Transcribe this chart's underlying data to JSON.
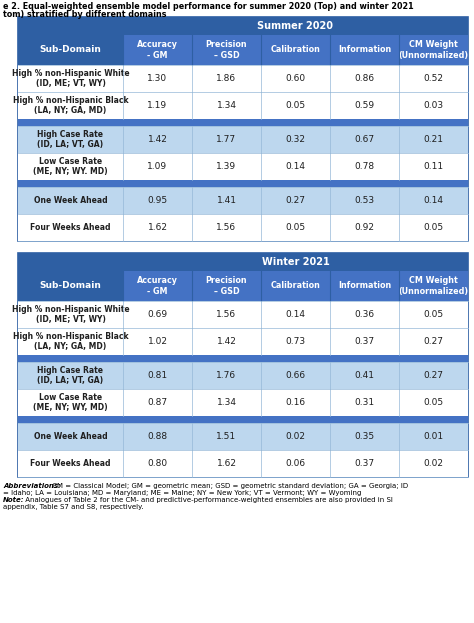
{
  "title_line1": "e 2. Equal-weighted ensemble model performance for summer 2020 (Top) and winter 2021",
  "title_line2": "tom) stratified by different domains",
  "summer_header": "Summer 2020",
  "winter_header": "Winter 2021",
  "col_headers": [
    "Accuracy\n- GM",
    "Precision\n– GSD",
    "Calibration",
    "Information",
    "CM Weight\n(Unnormalized)"
  ],
  "row_header": "Sub-Domain",
  "summer_rows": [
    {
      "label": "High % non-Hispanic White\n(ID, ME; VT, WY)",
      "values": [
        1.3,
        1.86,
        0.6,
        0.86,
        0.52
      ],
      "light": false
    },
    {
      "label": "High % non-Hispanic Black\n(LA, NY; GA, MD)",
      "values": [
        1.19,
        1.34,
        0.05,
        0.59,
        0.03
      ],
      "light": false
    },
    {
      "label": null,
      "values": null,
      "separator": true
    },
    {
      "label": "High Case Rate\n(ID, LA; VT, GA)",
      "values": [
        1.42,
        1.77,
        0.32,
        0.67,
        0.21
      ],
      "light": true
    },
    {
      "label": "Low Case Rate\n(ME, NY; WY. MD)",
      "values": [
        1.09,
        1.39,
        0.14,
        0.78,
        0.11
      ],
      "light": false
    },
    {
      "label": null,
      "values": null,
      "separator": true
    },
    {
      "label": "One Week Ahead",
      "values": [
        0.95,
        1.41,
        0.27,
        0.53,
        0.14
      ],
      "light": true
    },
    {
      "label": "Four Weeks Ahead",
      "values": [
        1.62,
        1.56,
        0.05,
        0.92,
        0.05
      ],
      "light": false
    }
  ],
  "winter_rows": [
    {
      "label": "High % non-Hispanic White\n(ID, ME; VT, WY)",
      "values": [
        0.69,
        1.56,
        0.14,
        0.36,
        0.05
      ],
      "light": false
    },
    {
      "label": "High % non-Hispanic Black\n(LA, NY; GA, MD)",
      "values": [
        1.02,
        1.42,
        0.73,
        0.37,
        0.27
      ],
      "light": false
    },
    {
      "label": null,
      "values": null,
      "separator": true
    },
    {
      "label": "High Case Rate\n(ID, LA; VT, GA)",
      "values": [
        0.81,
        1.76,
        0.66,
        0.41,
        0.27
      ],
      "light": true
    },
    {
      "label": "Low Case Rate\n(ME, NY; WY, MD)",
      "values": [
        0.87,
        1.34,
        0.16,
        0.31,
        0.05
      ],
      "light": false
    },
    {
      "label": null,
      "values": null,
      "separator": true
    },
    {
      "label": "One Week Ahead",
      "values": [
        0.88,
        1.51,
        0.02,
        0.35,
        0.01
      ],
      "light": true
    },
    {
      "label": "Four Weeks Ahead",
      "values": [
        0.8,
        1.62,
        0.06,
        0.37,
        0.02
      ],
      "light": false
    }
  ],
  "footnote_abbrev_label": "Abbreviations:",
  "footnote_abbrev_text": " CM = Classical Model; GM = geometric mean; GSD = geometric standard deviation; GA = Georgia; ID\n= Idaho; LA = Louisiana; MD = Maryland; ME = Maine; NY = New York; VT = Vermont; WY = Wyoming",
  "footnote_note_label": "Note:",
  "footnote_note_text": " Analogues of ",
  "footnote_table2": "Table 2",
  "footnote_rest": " for the CM- and predictive-performance-weighted ensembles are also provided in ",
  "footnote_si": "SI\nappendix",
  "footnote_end": ", Table S7 and S8, respectively.",
  "color_dark_blue": "#2E5FA3",
  "color_medium_blue": "#4472C4",
  "color_light_blue": "#BDD7EE",
  "color_light_row": "#D9E8F5",
  "color_white": "#FFFFFF",
  "color_text_white": "#FFFFFF",
  "color_text_dark": "#1F1F1F",
  "color_border": "#2E5FA3",
  "color_grid_line": "#95B8D8"
}
